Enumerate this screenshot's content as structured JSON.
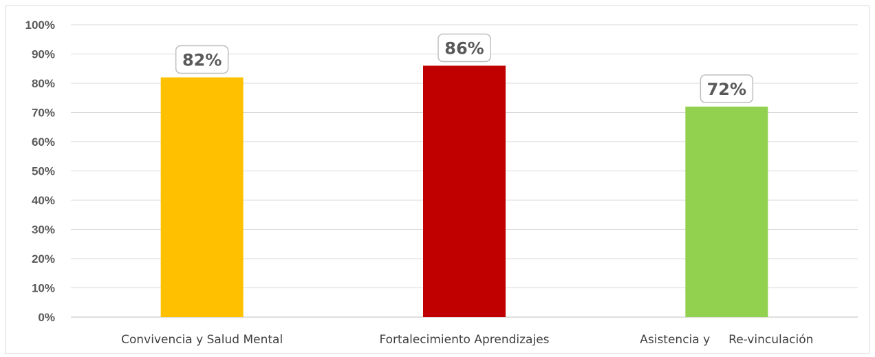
{
  "chart_data": {
    "type": "bar",
    "categories": [
      "Convivencia y Salud Mental",
      "Fortalecimiento Aprendizajes",
      "Asistencia y     Re-vinculación"
    ],
    "values": [
      82,
      86,
      72
    ],
    "data_labels": [
      "82%",
      "86%",
      "72%"
    ],
    "colors": [
      "#FFC000",
      "#C00000",
      "#92D050"
    ],
    "ylim": [
      0,
      100
    ],
    "yticks": [
      "0%",
      "10%",
      "20%",
      "30%",
      "40%",
      "50%",
      "60%",
      "70%",
      "80%",
      "90%",
      "100%"
    ],
    "grid": true,
    "legend": "none",
    "title": "",
    "xlabel": "",
    "ylabel": ""
  }
}
